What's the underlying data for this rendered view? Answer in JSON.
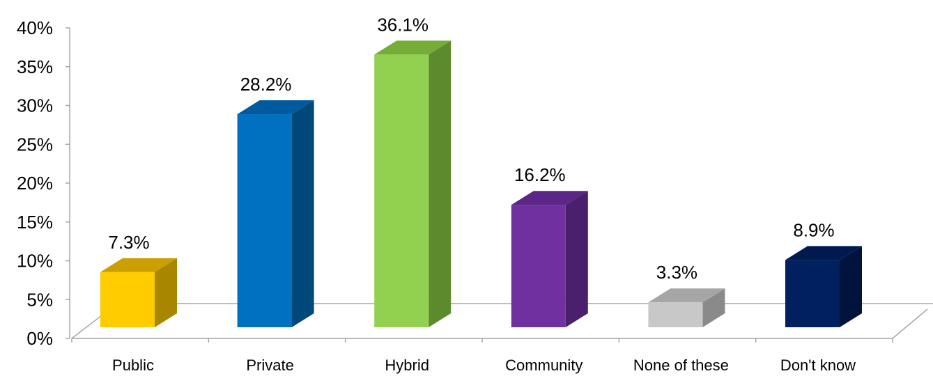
{
  "chart_data": {
    "type": "bar",
    "categories": [
      "Public",
      "Private",
      "Hybrid",
      "Community",
      "None of these",
      "Don't know"
    ],
    "values": [
      7.3,
      28.2,
      36.1,
      16.2,
      3.3,
      8.9
    ],
    "data_labels": [
      "7.3%",
      "28.2%",
      "36.1%",
      "16.2%",
      "3.3%",
      "8.9%"
    ],
    "y_tick_labels": [
      "0%",
      "5%",
      "10%",
      "15%",
      "20%",
      "25%",
      "30%",
      "35%",
      "40%"
    ],
    "ylim": [
      0,
      40
    ],
    "title": "",
    "xlabel": "",
    "ylabel": "",
    "grid": false,
    "legend": "none",
    "style": "3d-column",
    "colors": [
      {
        "front": "#FFCC00",
        "side": "#A88600",
        "top": "#C9A000"
      },
      {
        "front": "#0070C0",
        "side": "#00477A",
        "top": "#005A9E"
      },
      {
        "front": "#92D050",
        "side": "#5E8A2E",
        "top": "#76AD38"
      },
      {
        "front": "#7030A0",
        "side": "#4A1F6B",
        "top": "#5B2687"
      },
      {
        "front": "#C8C8C8",
        "side": "#8A8A8A",
        "top": "#A6A6A6"
      },
      {
        "front": "#002060",
        "side": "#00133D",
        "top": "#001A4F"
      }
    ],
    "axis_color": "#A6A6A6"
  }
}
